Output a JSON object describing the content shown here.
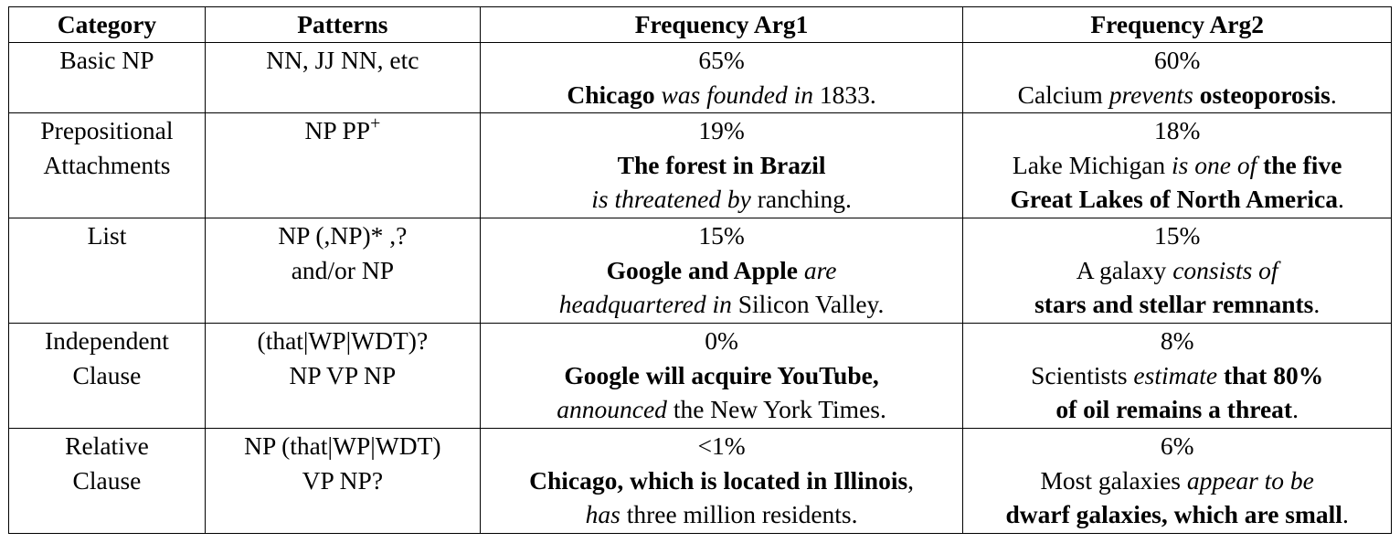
{
  "headers": {
    "category": "Category",
    "patterns": "Patterns",
    "freq_arg1": "Frequency Arg1",
    "freq_arg2": "Frequency Arg2"
  },
  "rows": [
    {
      "category": [
        "Basic NP"
      ],
      "patterns": [
        "NN, JJ NN, etc"
      ],
      "arg1_pct": "65%",
      "arg1_example": [
        [
          {
            "t": "Chicago",
            "s": "b"
          },
          {
            "t": " ",
            "s": ""
          },
          {
            "t": "was founded in",
            "s": "i"
          },
          {
            "t": " 1833.",
            "s": ""
          }
        ]
      ],
      "arg2_pct": "60%",
      "arg2_example": [
        [
          {
            "t": "Calcium ",
            "s": ""
          },
          {
            "t": "prevents",
            "s": "i"
          },
          {
            "t": " ",
            "s": ""
          },
          {
            "t": "osteoporosis",
            "s": "b"
          },
          {
            "t": ".",
            "s": ""
          }
        ]
      ]
    },
    {
      "category": [
        "Prepositional",
        "Attachments"
      ],
      "patterns": [
        "NP PP"
      ],
      "patterns_sup": "+",
      "arg1_pct": "19%",
      "arg1_example": [
        [
          {
            "t": "The forest in Brazil",
            "s": "b"
          }
        ],
        [
          {
            "t": "is threatened by",
            "s": "i"
          },
          {
            "t": " ranching.",
            "s": ""
          }
        ]
      ],
      "arg2_pct": "18%",
      "arg2_example": [
        [
          {
            "t": "Lake Michigan ",
            "s": ""
          },
          {
            "t": "is one of",
            "s": "i"
          },
          {
            "t": " ",
            "s": ""
          },
          {
            "t": "the five",
            "s": "b"
          }
        ],
        [
          {
            "t": "Great Lakes of North America",
            "s": "b"
          },
          {
            "t": ".",
            "s": ""
          }
        ]
      ]
    },
    {
      "category": [
        "List"
      ],
      "patterns": [
        "NP (,NP)* ,?",
        "and/or NP"
      ],
      "arg1_pct": "15%",
      "arg1_example": [
        [
          {
            "t": "Google and Apple",
            "s": "b"
          },
          {
            "t": " ",
            "s": ""
          },
          {
            "t": "are",
            "s": "i"
          }
        ],
        [
          {
            "t": "headquartered in",
            "s": "i"
          },
          {
            "t": " Silicon Valley.",
            "s": ""
          }
        ]
      ],
      "arg2_pct": "15%",
      "arg2_example": [
        [
          {
            "t": "A galaxy ",
            "s": ""
          },
          {
            "t": "consists of",
            "s": "i"
          }
        ],
        [
          {
            "t": "stars and stellar remnants",
            "s": "b"
          },
          {
            "t": ".",
            "s": ""
          }
        ]
      ]
    },
    {
      "category": [
        "Independent",
        "Clause"
      ],
      "patterns": [
        "(that|WP|WDT)?",
        "NP VP NP"
      ],
      "arg1_pct": "0%",
      "arg1_example": [
        [
          {
            "t": "Google will acquire YouTube,",
            "s": "b"
          }
        ],
        [
          {
            "t": "announced",
            "s": "i"
          },
          {
            "t": " the New York Times.",
            "s": ""
          }
        ]
      ],
      "arg2_pct": "8%",
      "arg2_example": [
        [
          {
            "t": "Scientists ",
            "s": ""
          },
          {
            "t": "estimate",
            "s": "i"
          },
          {
            "t": " ",
            "s": ""
          },
          {
            "t": "that 80%",
            "s": "b"
          }
        ],
        [
          {
            "t": "of oil remains a threat",
            "s": "b"
          },
          {
            "t": ".",
            "s": ""
          }
        ]
      ]
    },
    {
      "category": [
        "Relative",
        "Clause"
      ],
      "patterns": [
        "NP (that|WP|WDT)",
        "VP NP?"
      ],
      "arg1_pct": "<1%",
      "arg1_example": [
        [
          {
            "t": "Chicago, which is located in Illinois",
            "s": "b"
          },
          {
            "t": ",",
            "s": ""
          }
        ],
        [
          {
            "t": "has",
            "s": "i"
          },
          {
            "t": " three million residents.",
            "s": ""
          }
        ]
      ],
      "arg2_pct": "6%",
      "arg2_example": [
        [
          {
            "t": "Most galaxies ",
            "s": ""
          },
          {
            "t": "appear to be",
            "s": "i"
          }
        ],
        [
          {
            "t": "dwarf galaxies, which are small",
            "s": "b"
          },
          {
            "t": ".",
            "s": ""
          }
        ]
      ]
    }
  ]
}
